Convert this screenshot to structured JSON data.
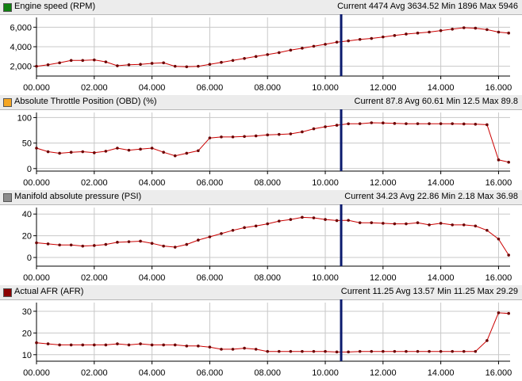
{
  "x_axis": {
    "range": [
      0,
      16.4
    ],
    "tick_values": [
      0,
      2,
      4,
      6,
      8,
      10,
      12,
      14,
      16
    ],
    "tick_labels": [
      "00.000",
      "02.000",
      "04.000",
      "06.000",
      "08.000",
      "10.000",
      "12.000",
      "14.000",
      "16.000"
    ],
    "cursor_x": 10.55
  },
  "colors": {
    "line": "#cc0000",
    "cursor": "#0a1a6e",
    "grid": "#c8c8c8",
    "axes": "#000000"
  },
  "panels": [
    {
      "title": "Engine speed (RPM)",
      "stats": "Current 4474 Avg 3634.52 Min 1896 Max 5946",
      "swatch_color": "#0f7f0f"
    },
    {
      "title": "Absolute Throttle Position (OBD) (%)",
      "stats": "Current 87.8 Avg 60.61 Min 12.5 Max 89.8",
      "swatch_color": "#f5a623"
    },
    {
      "title": "Manifold absolute pressure (PSI)",
      "stats": "Current 34.23 Avg 22.86 Min 2.18 Max 36.98",
      "swatch_color": "#8c8c8c"
    },
    {
      "title": "Actual AFR (AFR)",
      "stats": "Current 11.25 Avg 13.57 Min 11.25 Max 29.29",
      "swatch_color": "#8b0000"
    }
  ],
  "chart_data": [
    {
      "type": "line",
      "title": "Engine speed (RPM)",
      "y_tick_values": [
        2000,
        4000,
        6000
      ],
      "y_tick_labels": [
        "2,000",
        "4,000",
        "6,000"
      ],
      "ylim": [
        1000,
        7000
      ],
      "xlim": [
        0,
        16.4
      ],
      "x": [
        0.0,
        0.4,
        0.8,
        1.2,
        1.6,
        2.0,
        2.4,
        2.8,
        3.2,
        3.6,
        4.0,
        4.4,
        4.8,
        5.2,
        5.6,
        6.0,
        6.4,
        6.8,
        7.2,
        7.6,
        8.0,
        8.4,
        8.8,
        9.2,
        9.6,
        10.0,
        10.4,
        10.8,
        11.2,
        11.6,
        12.0,
        12.4,
        12.8,
        13.2,
        13.6,
        14.0,
        14.4,
        14.8,
        15.2,
        15.6,
        16.0,
        16.35
      ],
      "y": [
        2000,
        2150,
        2350,
        2600,
        2600,
        2650,
        2450,
        2050,
        2150,
        2200,
        2300,
        2350,
        2000,
        1950,
        2000,
        2200,
        2400,
        2600,
        2800,
        3000,
        3200,
        3400,
        3650,
        3850,
        4050,
        4250,
        4474,
        4600,
        4750,
        4850,
        5000,
        5150,
        5300,
        5400,
        5500,
        5650,
        5800,
        5946,
        5900,
        5750,
        5500,
        5400
      ]
    },
    {
      "type": "line",
      "title": "Absolute Throttle Position (OBD) (%)",
      "y_tick_values": [
        0,
        50,
        100
      ],
      "y_tick_labels": [
        "0",
        "50",
        "100"
      ],
      "ylim": [
        -5,
        110
      ],
      "xlim": [
        0,
        16.4
      ],
      "x": [
        0.0,
        0.4,
        0.8,
        1.2,
        1.6,
        2.0,
        2.4,
        2.8,
        3.2,
        3.6,
        4.0,
        4.4,
        4.8,
        5.2,
        5.6,
        6.0,
        6.4,
        6.8,
        7.2,
        7.6,
        8.0,
        8.4,
        8.8,
        9.2,
        9.6,
        10.0,
        10.4,
        10.8,
        11.2,
        11.6,
        12.0,
        12.4,
        12.8,
        13.2,
        13.6,
        14.0,
        14.4,
        14.8,
        15.2,
        15.6,
        16.0,
        16.35
      ],
      "y": [
        40,
        33,
        30,
        32,
        33,
        31,
        34,
        40,
        36,
        38,
        40,
        32,
        25,
        30,
        35,
        60,
        62,
        62,
        63,
        64,
        66,
        67,
        68,
        72,
        78,
        82,
        85,
        87.8,
        88,
        89.8,
        89.5,
        88.5,
        88,
        88,
        88,
        88,
        88,
        87.5,
        87,
        86,
        17,
        12.5
      ]
    },
    {
      "type": "line",
      "title": "Manifold absolute pressure (PSI)",
      "y_tick_values": [
        0,
        20,
        40
      ],
      "y_tick_labels": [
        "0",
        "20",
        "40"
      ],
      "ylim": [
        -8,
        46
      ],
      "xlim": [
        0,
        16.4
      ],
      "x": [
        0.0,
        0.4,
        0.8,
        1.2,
        1.6,
        2.0,
        2.4,
        2.8,
        3.2,
        3.6,
        4.0,
        4.4,
        4.8,
        5.2,
        5.6,
        6.0,
        6.4,
        6.8,
        7.2,
        7.6,
        8.0,
        8.4,
        8.8,
        9.2,
        9.6,
        10.0,
        10.4,
        10.8,
        11.2,
        11.6,
        12.0,
        12.4,
        12.8,
        13.2,
        13.6,
        14.0,
        14.4,
        14.8,
        15.2,
        15.6,
        16.0,
        16.35
      ],
      "y": [
        13.5,
        12.5,
        11.5,
        11.5,
        10.5,
        11,
        12,
        14,
        14.5,
        15,
        13,
        10.5,
        9.5,
        12,
        16,
        19,
        22,
        25,
        27.5,
        29,
        31,
        33.5,
        35,
        36.98,
        36.5,
        35,
        34,
        34.23,
        32,
        32,
        31.5,
        31,
        31,
        32,
        30,
        31.5,
        30,
        30,
        29,
        25,
        17,
        2.18
      ]
    },
    {
      "type": "line",
      "title": "Actual AFR (AFR)",
      "y_tick_values": [
        10,
        20,
        30
      ],
      "y_tick_labels": [
        "10",
        "20",
        "30"
      ],
      "ylim": [
        7,
        34
      ],
      "xlim": [
        0,
        16.4
      ],
      "x": [
        0.0,
        0.4,
        0.8,
        1.2,
        1.6,
        2.0,
        2.4,
        2.8,
        3.2,
        3.6,
        4.0,
        4.4,
        4.8,
        5.2,
        5.6,
        6.0,
        6.4,
        6.8,
        7.2,
        7.6,
        8.0,
        8.4,
        8.8,
        9.2,
        9.6,
        10.0,
        10.4,
        10.8,
        11.2,
        11.6,
        12.0,
        12.4,
        12.8,
        13.2,
        13.6,
        14.0,
        14.4,
        14.8,
        15.2,
        15.6,
        16.0,
        16.35
      ],
      "y": [
        15.5,
        15.0,
        14.5,
        14.5,
        14.5,
        14.5,
        14.5,
        15.0,
        14.5,
        15.0,
        14.5,
        14.5,
        14.5,
        14.0,
        14.0,
        13.5,
        12.5,
        12.5,
        13.0,
        12.5,
        11.5,
        11.5,
        11.5,
        11.5,
        11.5,
        11.5,
        11.25,
        11.25,
        11.5,
        11.5,
        11.5,
        11.5,
        11.5,
        11.5,
        11.5,
        11.5,
        11.5,
        11.5,
        11.5,
        16.5,
        29.29,
        29.0
      ]
    }
  ]
}
